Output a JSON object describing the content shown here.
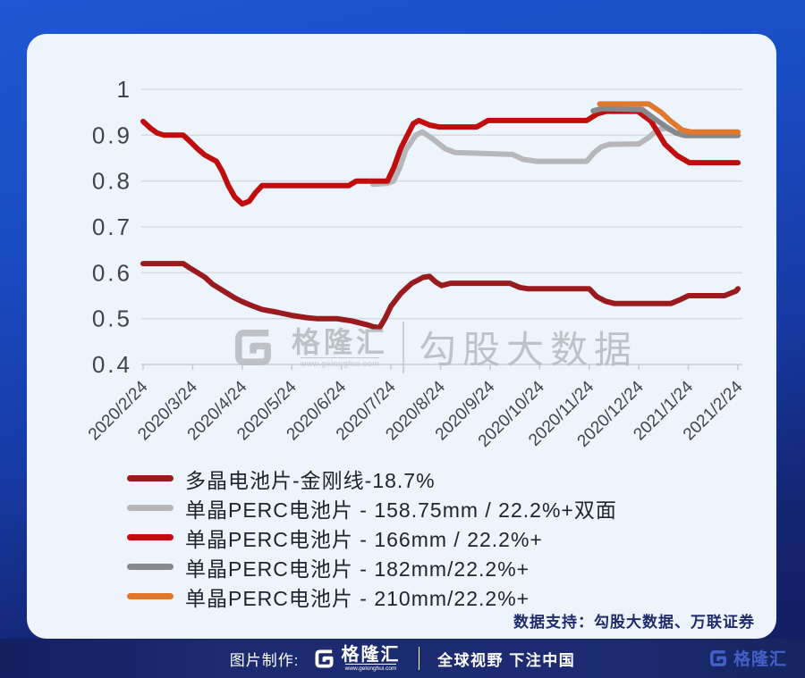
{
  "chart_data": {
    "type": "line",
    "title": "",
    "x_labels": [
      "2020/2/24",
      "2020/3/24",
      "2020/4/24",
      "2020/5/24",
      "2020/6/24",
      "2020/7/24",
      "2020/8/24",
      "2020/9/24",
      "2020/10/24",
      "2020/11/24",
      "2020/12/24",
      "2021/1/24",
      "2021/2/24"
    ],
    "x_unit": "months since 2020/2/24 (fractional = weekly readings)",
    "y_min": 0.4,
    "y_max": 1.0,
    "y_ticks": [
      "1",
      "0.9",
      "0.8",
      "0.7",
      "0.6",
      "0.5",
      "0.4"
    ],
    "grid": true,
    "legend_position": "bottom-left",
    "series": [
      {
        "name": "多晶电池片-金刚线-18.7%",
        "color": "#9a1b1e",
        "points": [
          [
            0,
            0.62
          ],
          [
            0.81,
            0.62
          ],
          [
            0.95,
            0.61
          ],
          [
            1.1,
            0.6
          ],
          [
            1.25,
            0.59
          ],
          [
            1.4,
            0.575
          ],
          [
            1.55,
            0.565
          ],
          [
            1.7,
            0.555
          ],
          [
            1.85,
            0.545
          ],
          [
            2.0,
            0.537
          ],
          [
            2.2,
            0.528
          ],
          [
            2.4,
            0.52
          ],
          [
            2.7,
            0.514
          ],
          [
            3.0,
            0.507
          ],
          [
            3.3,
            0.502
          ],
          [
            3.5,
            0.5
          ],
          [
            3.9,
            0.5
          ],
          [
            4.2,
            0.495
          ],
          [
            4.5,
            0.487
          ],
          [
            4.65,
            0.482
          ],
          [
            4.77,
            0.48
          ],
          [
            4.88,
            0.5
          ],
          [
            5.0,
            0.527
          ],
          [
            5.2,
            0.555
          ],
          [
            5.42,
            0.577
          ],
          [
            5.65,
            0.59
          ],
          [
            5.78,
            0.592
          ],
          [
            5.9,
            0.58
          ],
          [
            6.02,
            0.572
          ],
          [
            6.2,
            0.577
          ],
          [
            7.4,
            0.577
          ],
          [
            7.6,
            0.568
          ],
          [
            7.77,
            0.565
          ],
          [
            9.0,
            0.565
          ],
          [
            9.15,
            0.548
          ],
          [
            9.33,
            0.538
          ],
          [
            9.5,
            0.533
          ],
          [
            10.65,
            0.533
          ],
          [
            10.85,
            0.542
          ],
          [
            11.0,
            0.55
          ],
          [
            11.73,
            0.55
          ],
          [
            11.96,
            0.56
          ],
          [
            12,
            0.565
          ]
        ]
      },
      {
        "name": "单晶PERC电池片 - 158.75mm / 22.2%+双面",
        "color": "#b5b7ba",
        "points": [
          [
            4.64,
            0.793
          ],
          [
            4.93,
            0.795
          ],
          [
            5.05,
            0.8
          ],
          [
            5.18,
            0.83
          ],
          [
            5.3,
            0.868
          ],
          [
            5.5,
            0.9
          ],
          [
            5.63,
            0.907
          ],
          [
            5.83,
            0.893
          ],
          [
            6.1,
            0.87
          ],
          [
            6.3,
            0.862
          ],
          [
            7.45,
            0.858
          ],
          [
            7.67,
            0.847
          ],
          [
            7.95,
            0.843
          ],
          [
            8.95,
            0.843
          ],
          [
            9.1,
            0.862
          ],
          [
            9.25,
            0.875
          ],
          [
            9.4,
            0.88
          ],
          [
            10.0,
            0.881
          ],
          [
            10.2,
            0.895
          ],
          [
            10.38,
            0.912
          ],
          [
            10.55,
            0.915
          ],
          [
            10.7,
            0.908
          ],
          [
            10.88,
            0.9
          ],
          [
            12,
            0.9
          ]
        ]
      },
      {
        "name": "单晶PERC电池片 - 166mm / 22.2%+",
        "color": "#c00d0d",
        "points": [
          [
            0,
            0.93
          ],
          [
            0.15,
            0.915
          ],
          [
            0.28,
            0.905
          ],
          [
            0.42,
            0.9
          ],
          [
            0.81,
            0.9
          ],
          [
            0.96,
            0.885
          ],
          [
            1.1,
            0.87
          ],
          [
            1.24,
            0.857
          ],
          [
            1.36,
            0.85
          ],
          [
            1.48,
            0.843
          ],
          [
            1.6,
            0.82
          ],
          [
            1.72,
            0.79
          ],
          [
            1.85,
            0.765
          ],
          [
            2.0,
            0.75
          ],
          [
            2.14,
            0.756
          ],
          [
            2.27,
            0.775
          ],
          [
            2.4,
            0.79
          ],
          [
            4.15,
            0.79
          ],
          [
            4.3,
            0.8
          ],
          [
            4.93,
            0.8
          ],
          [
            5.06,
            0.83
          ],
          [
            5.2,
            0.872
          ],
          [
            5.45,
            0.925
          ],
          [
            5.56,
            0.932
          ],
          [
            5.78,
            0.922
          ],
          [
            5.97,
            0.918
          ],
          [
            6.73,
            0.918
          ],
          [
            6.96,
            0.932
          ],
          [
            8.95,
            0.932
          ],
          [
            9.17,
            0.947
          ],
          [
            9.35,
            0.952
          ],
          [
            9.98,
            0.952
          ],
          [
            10.25,
            0.93
          ],
          [
            10.53,
            0.88
          ],
          [
            10.78,
            0.855
          ],
          [
            11.02,
            0.84
          ],
          [
            12,
            0.84
          ]
        ]
      },
      {
        "name": "单晶PERC电池片 - 182mm/22.2%+",
        "color": "#85888c",
        "points": [
          [
            9.08,
            0.953
          ],
          [
            9.25,
            0.958
          ],
          [
            10.07,
            0.956
          ],
          [
            10.3,
            0.937
          ],
          [
            10.53,
            0.92
          ],
          [
            10.75,
            0.905
          ],
          [
            10.95,
            0.899
          ],
          [
            12,
            0.899
          ]
        ]
      },
      {
        "name": "单晶PERC电池片 - 210mm/22.2%+",
        "color": "#e0782d",
        "points": [
          [
            9.21,
            0.968
          ],
          [
            10.2,
            0.968
          ],
          [
            10.45,
            0.95
          ],
          [
            10.65,
            0.93
          ],
          [
            10.88,
            0.911
          ],
          [
            11.05,
            0.907
          ],
          [
            12,
            0.907
          ]
        ]
      }
    ]
  },
  "watermark": {
    "logo_name": "格隆汇",
    "logo_url": "www.gelonghui.com",
    "big_text": "勾股大数据"
  },
  "source_note": "数据支持：勾股大数据、万联证券",
  "footer": {
    "made_by": "图片制作:",
    "logo_name": "格隆汇",
    "logo_url": "www.gelonghui.com",
    "slogan": "全球视野 下注中国",
    "right_logo_name": "格隆汇"
  },
  "colors": {
    "card_bg": "#edf4fb",
    "page_top": "#1e57d2",
    "page_bottom": "#131d5e",
    "grid_line": "#d8dce2",
    "axis_text": "#43434d",
    "note_text": "#1e2c6c"
  }
}
